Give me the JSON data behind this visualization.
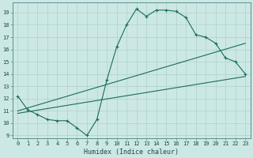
{
  "title": "",
  "xlabel": "Humidex (Indice chaleur)",
  "ylabel": "",
  "background_color": "#cce8e4",
  "grid_color": "#aed0cc",
  "line_color": "#1a6b60",
  "xlim": [
    -0.5,
    23.5
  ],
  "ylim": [
    8.8,
    19.8
  ],
  "yticks": [
    9,
    10,
    11,
    12,
    13,
    14,
    15,
    16,
    17,
    18,
    19
  ],
  "xticks": [
    0,
    1,
    2,
    3,
    4,
    5,
    6,
    7,
    8,
    9,
    10,
    11,
    12,
    13,
    14,
    15,
    16,
    17,
    18,
    19,
    20,
    21,
    22,
    23
  ],
  "series1_x": [
    0,
    1,
    2,
    3,
    4,
    5,
    6,
    7,
    8,
    9,
    10,
    11,
    12,
    13,
    14,
    15,
    16,
    17,
    18,
    19,
    20,
    21,
    22,
    23
  ],
  "series1_y": [
    12.2,
    11.1,
    10.7,
    10.3,
    10.2,
    10.2,
    9.6,
    9.0,
    10.3,
    13.5,
    16.2,
    18.0,
    19.3,
    18.7,
    19.2,
    19.2,
    19.1,
    18.6,
    17.2,
    17.0,
    16.5,
    15.3,
    15.0,
    14.0
  ],
  "series2_x": [
    0,
    23
  ],
  "series2_y": [
    11.0,
    16.5
  ],
  "series3_x": [
    0,
    23
  ],
  "series3_y": [
    10.8,
    13.8
  ]
}
